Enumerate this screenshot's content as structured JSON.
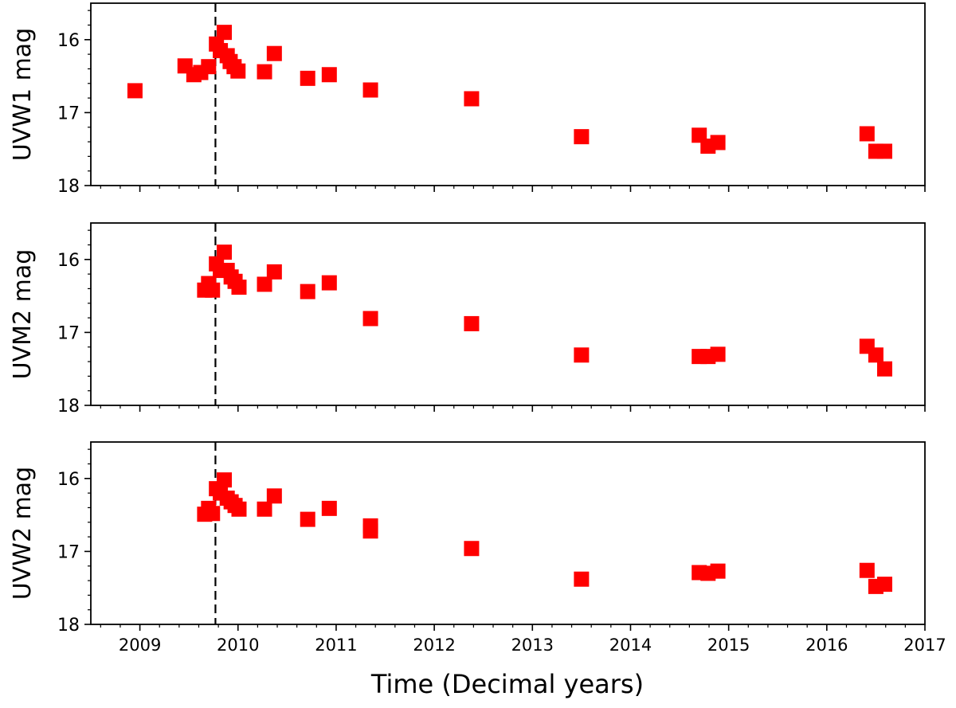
{
  "figure": {
    "xlabel": "Time (Decimal years)"
  },
  "chart_data": [
    {
      "type": "scatter",
      "ylabel": "UVW1 mag",
      "xlim": [
        2008.5,
        2017
      ],
      "ylim": [
        18,
        15.5
      ],
      "y_inverted": true,
      "xticks": [
        2009,
        2010,
        2011,
        2012,
        2013,
        2014,
        2015,
        2016,
        2017
      ],
      "yticks": [
        16,
        17,
        18
      ],
      "show_xtick_labels": false,
      "vline": 2009.77,
      "marker": "square",
      "color": "#ff0000",
      "points": [
        {
          "x": 2008.95,
          "y": 16.7
        },
        {
          "x": 2009.46,
          "y": 16.36
        },
        {
          "x": 2009.55,
          "y": 16.48
        },
        {
          "x": 2009.62,
          "y": 16.45
        },
        {
          "x": 2009.7,
          "y": 16.37
        },
        {
          "x": 2009.78,
          "y": 16.06
        },
        {
          "x": 2009.82,
          "y": 16.15
        },
        {
          "x": 2009.86,
          "y": 15.9
        },
        {
          "x": 2009.89,
          "y": 16.22
        },
        {
          "x": 2009.92,
          "y": 16.3
        },
        {
          "x": 2009.96,
          "y": 16.37
        },
        {
          "x": 2010.0,
          "y": 16.43
        },
        {
          "x": 2010.27,
          "y": 16.44
        },
        {
          "x": 2010.37,
          "y": 16.19
        },
        {
          "x": 2010.71,
          "y": 16.53
        },
        {
          "x": 2010.93,
          "y": 16.48
        },
        {
          "x": 2011.35,
          "y": 16.69
        },
        {
          "x": 2012.38,
          "y": 16.81
        },
        {
          "x": 2013.5,
          "y": 17.33
        },
        {
          "x": 2014.7,
          "y": 17.31
        },
        {
          "x": 2014.79,
          "y": 17.46
        },
        {
          "x": 2014.89,
          "y": 17.41
        },
        {
          "x": 2016.41,
          "y": 17.29
        },
        {
          "x": 2016.5,
          "y": 17.53
        },
        {
          "x": 2016.59,
          "y": 17.53
        }
      ]
    },
    {
      "type": "scatter",
      "ylabel": "UVM2 mag",
      "xlim": [
        2008.5,
        2017
      ],
      "ylim": [
        18,
        15.5
      ],
      "y_inverted": true,
      "xticks": [
        2009,
        2010,
        2011,
        2012,
        2013,
        2014,
        2015,
        2016,
        2017
      ],
      "yticks": [
        16,
        17,
        18
      ],
      "show_xtick_labels": false,
      "vline": 2009.77,
      "marker": "square",
      "color": "#ff0000",
      "points": [
        {
          "x": 2009.66,
          "y": 16.42
        },
        {
          "x": 2009.7,
          "y": 16.33
        },
        {
          "x": 2009.74,
          "y": 16.42
        },
        {
          "x": 2009.78,
          "y": 16.06
        },
        {
          "x": 2009.82,
          "y": 16.15
        },
        {
          "x": 2009.86,
          "y": 15.9
        },
        {
          "x": 2009.89,
          "y": 16.15
        },
        {
          "x": 2009.93,
          "y": 16.24
        },
        {
          "x": 2009.97,
          "y": 16.3
        },
        {
          "x": 2010.01,
          "y": 16.38
        },
        {
          "x": 2010.27,
          "y": 16.34
        },
        {
          "x": 2010.37,
          "y": 16.17
        },
        {
          "x": 2010.71,
          "y": 16.44
        },
        {
          "x": 2010.93,
          "y": 16.32
        },
        {
          "x": 2011.35,
          "y": 16.81
        },
        {
          "x": 2012.38,
          "y": 16.88
        },
        {
          "x": 2013.5,
          "y": 17.31
        },
        {
          "x": 2014.7,
          "y": 17.33
        },
        {
          "x": 2014.79,
          "y": 17.33
        },
        {
          "x": 2014.89,
          "y": 17.3
        },
        {
          "x": 2016.41,
          "y": 17.19
        },
        {
          "x": 2016.5,
          "y": 17.31
        },
        {
          "x": 2016.59,
          "y": 17.5
        }
      ]
    },
    {
      "type": "scatter",
      "ylabel": "UVW2 mag",
      "xlim": [
        2008.5,
        2017
      ],
      "ylim": [
        18,
        15.5
      ],
      "y_inverted": true,
      "xticks": [
        2009,
        2010,
        2011,
        2012,
        2013,
        2014,
        2015,
        2016,
        2017
      ],
      "yticks": [
        16,
        17,
        18
      ],
      "show_xtick_labels": true,
      "vline": 2009.77,
      "marker": "square",
      "color": "#ff0000",
      "points": [
        {
          "x": 2009.66,
          "y": 16.49
        },
        {
          "x": 2009.7,
          "y": 16.41
        },
        {
          "x": 2009.74,
          "y": 16.48
        },
        {
          "x": 2009.78,
          "y": 16.14
        },
        {
          "x": 2009.82,
          "y": 16.2
        },
        {
          "x": 2009.86,
          "y": 16.02
        },
        {
          "x": 2009.89,
          "y": 16.27
        },
        {
          "x": 2009.93,
          "y": 16.32
        },
        {
          "x": 2009.97,
          "y": 16.37
        },
        {
          "x": 2010.01,
          "y": 16.42
        },
        {
          "x": 2010.27,
          "y": 16.42
        },
        {
          "x": 2010.37,
          "y": 16.24
        },
        {
          "x": 2010.71,
          "y": 16.56
        },
        {
          "x": 2010.93,
          "y": 16.41
        },
        {
          "x": 2011.35,
          "y": 16.65
        },
        {
          "x": 2011.35,
          "y": 16.72
        },
        {
          "x": 2012.38,
          "y": 16.96
        },
        {
          "x": 2013.5,
          "y": 17.38
        },
        {
          "x": 2014.7,
          "y": 17.29
        },
        {
          "x": 2014.79,
          "y": 17.3
        },
        {
          "x": 2014.89,
          "y": 17.27
        },
        {
          "x": 2016.41,
          "y": 17.26
        },
        {
          "x": 2016.5,
          "y": 17.48
        },
        {
          "x": 2016.59,
          "y": 17.45
        }
      ]
    }
  ]
}
